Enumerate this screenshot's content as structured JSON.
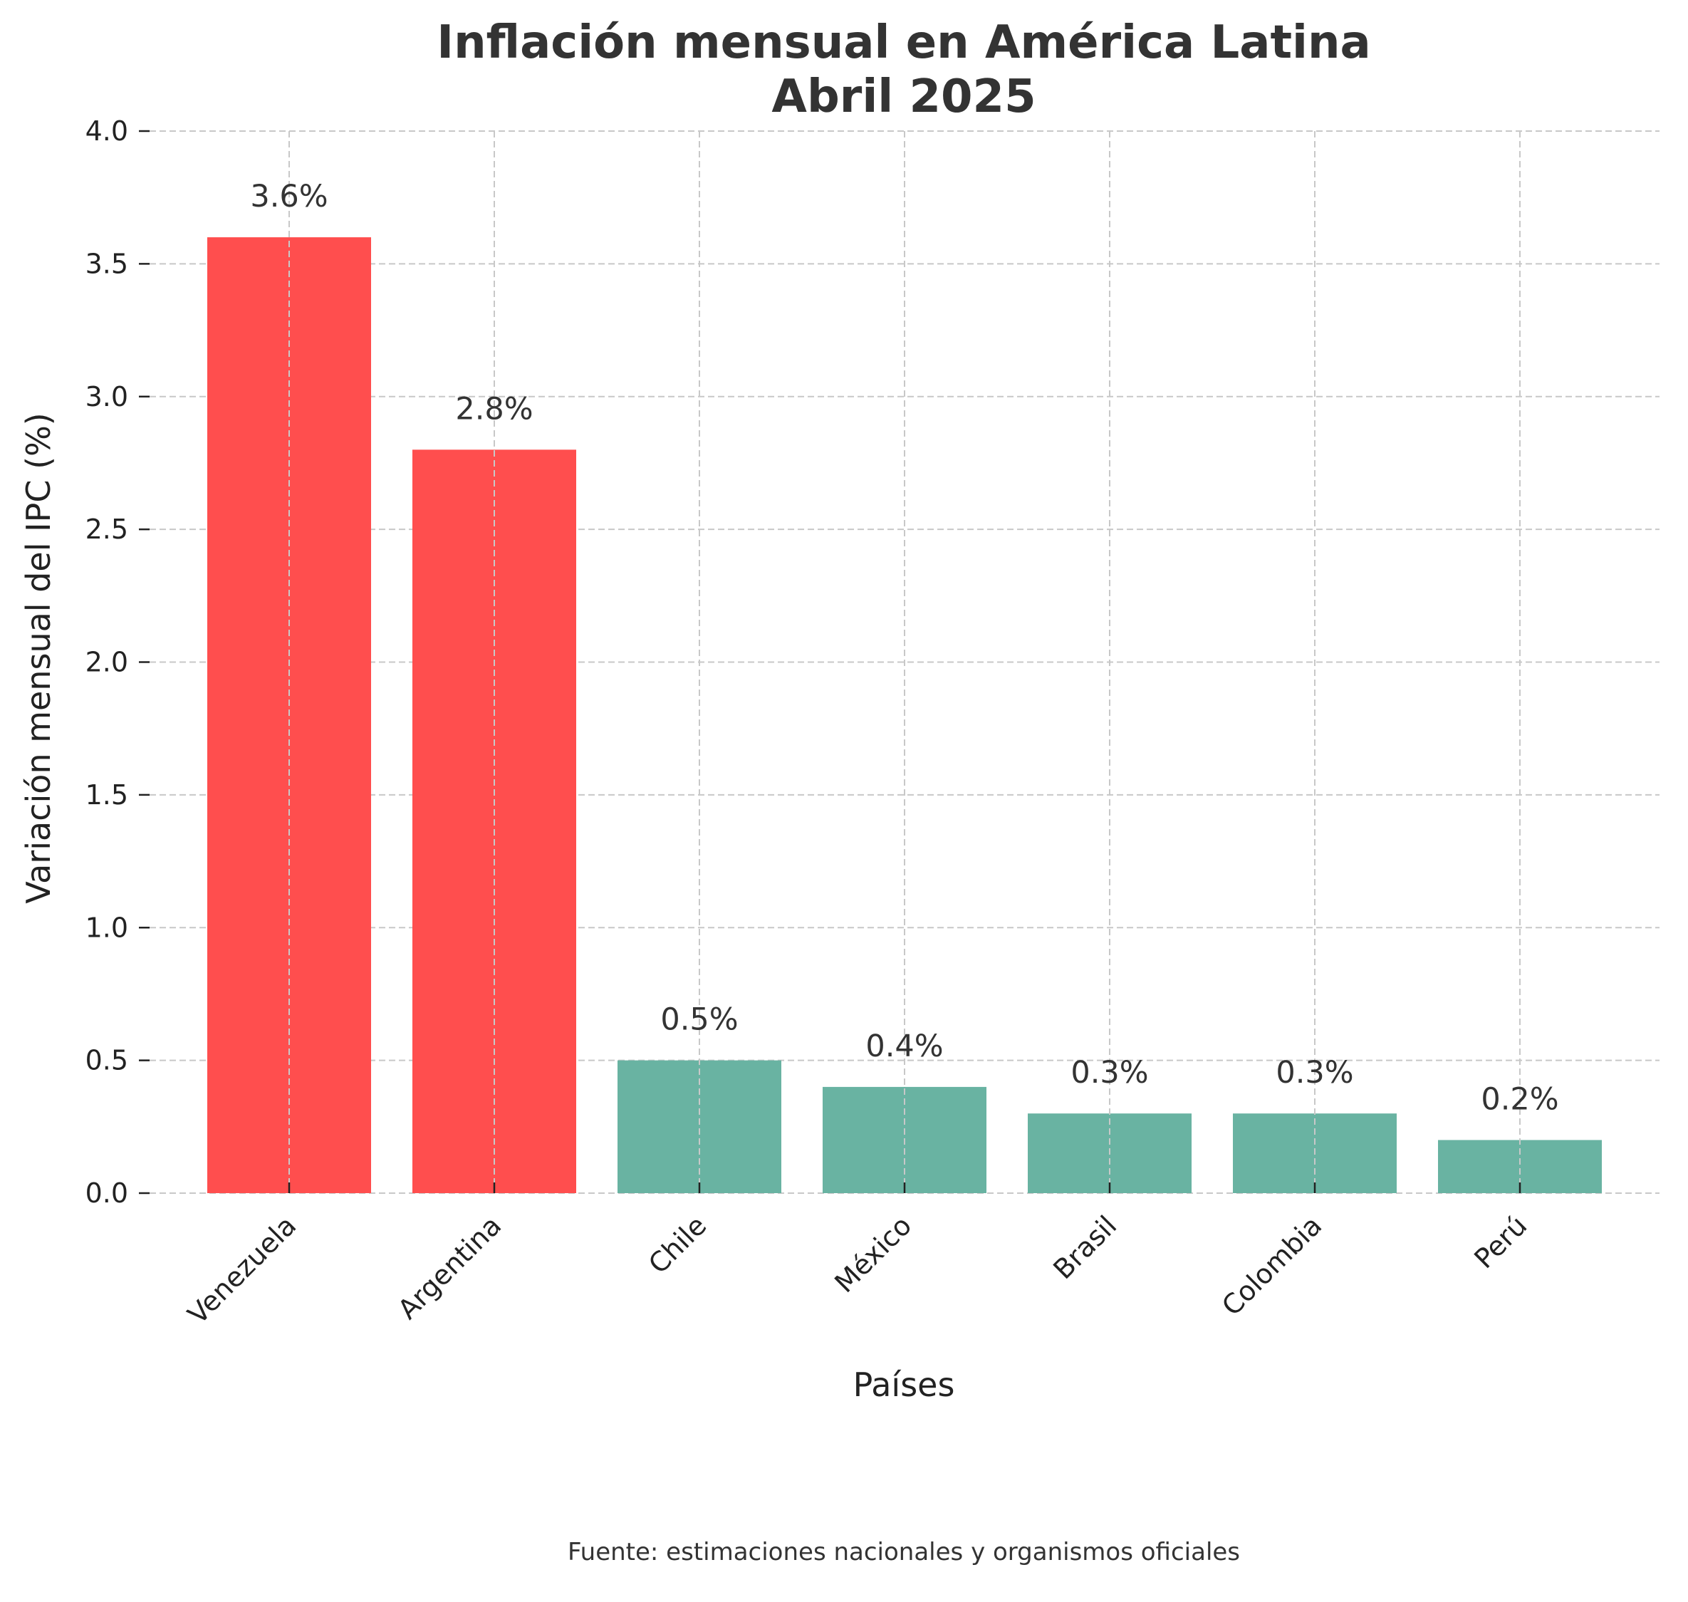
{
  "chart_data": {
    "type": "bar",
    "title": [
      "Inflación mensual en América Latina",
      "Abril 2025"
    ],
    "xlabel": "Países",
    "ylabel": "Variación mensual del IPC (%)",
    "categories": [
      "Venezuela",
      "Argentina",
      "Chile",
      "México",
      "Brasil",
      "Colombia",
      "Perú"
    ],
    "values": [
      3.6,
      2.8,
      0.5,
      0.4,
      0.3,
      0.3,
      0.2
    ],
    "value_labels": [
      "3.6%",
      "2.8%",
      "0.5%",
      "0.4%",
      "0.3%",
      "0.3%",
      "0.2%"
    ],
    "bar_colors": [
      "#ff4e4e",
      "#ff4e4e",
      "#69b3a2",
      "#69b3a2",
      "#69b3a2",
      "#69b3a2",
      "#69b3a2"
    ],
    "ylim": [
      0,
      4.0
    ],
    "yticks": [
      0.0,
      0.5,
      1.0,
      1.5,
      2.0,
      2.5,
      3.0,
      3.5,
      4.0
    ],
    "ytick_labels": [
      "0.0",
      "0.5",
      "1.0",
      "1.5",
      "2.0",
      "2.5",
      "3.0",
      "3.5",
      "4.0"
    ],
    "grid": true,
    "legend": "none"
  },
  "footer": {
    "source": "Fuente: estimaciones nacionales y organismos oficiales"
  },
  "colors": {
    "high_inflation": "#ff4e4e",
    "low_inflation": "#69b3a2",
    "text": "#333333",
    "grid": "#c8c8c8"
  }
}
